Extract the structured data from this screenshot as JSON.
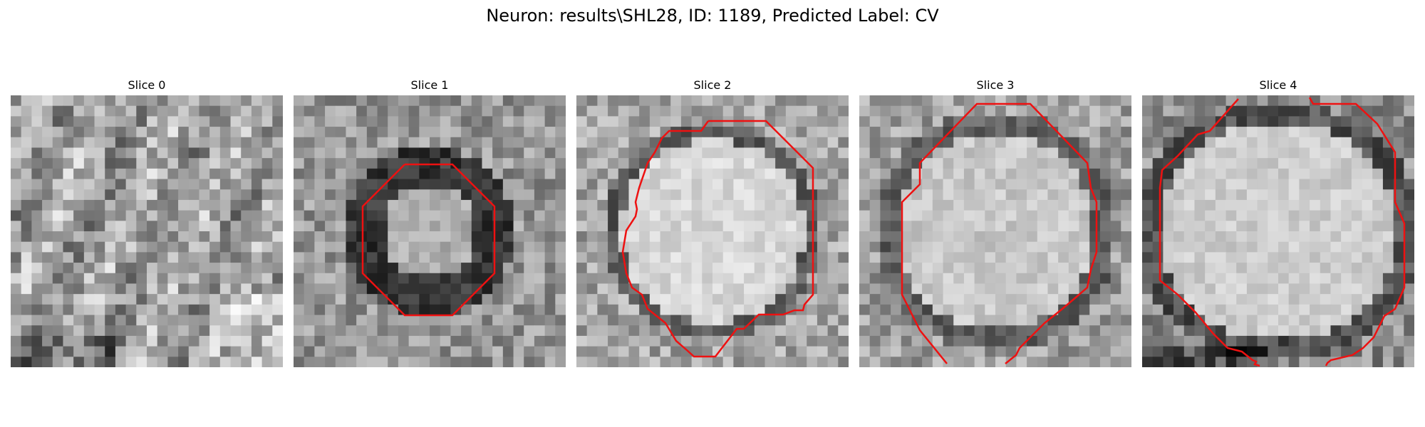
{
  "figure": {
    "title": "Neuron: results\\SHL28, ID: 1189, Predicted Label: CV"
  },
  "panels": [
    {
      "title": "Slice 0"
    },
    {
      "title": "Slice 1"
    },
    {
      "title": "Slice 2"
    },
    {
      "title": "Slice 3"
    },
    {
      "title": "Slice 4"
    }
  ],
  "style": {
    "contour_color": "#ee1111",
    "colormap": "gray"
  }
}
